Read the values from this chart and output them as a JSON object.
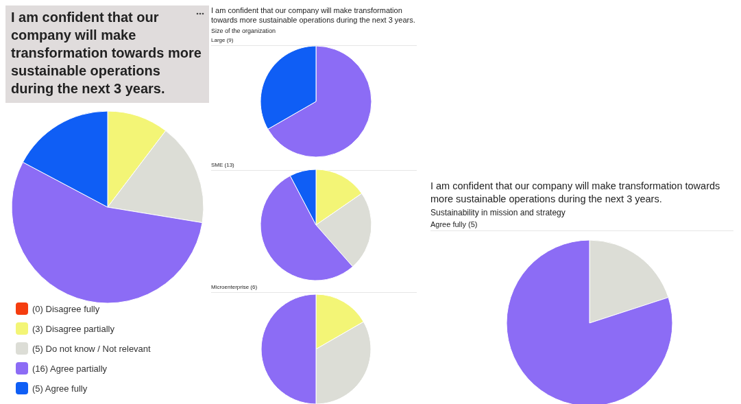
{
  "chart_data": [
    {
      "type": "pie",
      "title": "I am confident that our company will make transformation towards more sustainable operations during the next 3 years.",
      "categories": [
        "(0) Disagree fully",
        "(3) Disagree partially",
        "(5) Do not know / Not relevant",
        "(16) Agree partially",
        "(5) Agree fully"
      ],
      "values": [
        0,
        3,
        5,
        16,
        5
      ],
      "colors": [
        "#f53d0f",
        "#f3f576",
        "#dcddd6",
        "#8c6cf5",
        "#0f5ef5"
      ],
      "legend": "bottom left"
    },
    {
      "type": "pie",
      "title": "I am confident that our company will make transformation towards more sustainable operations during the next 3 years.",
      "subtitle": "Size of the organization",
      "annotations": [
        "Large (9)"
      ],
      "categories": [
        null,
        null
      ],
      "values": [
        66.7,
        33.3
      ],
      "colors": [
        "#8c6cf5",
        "#0f5ef5"
      ]
    },
    {
      "type": "pie",
      "annotations": [
        "SME (13)"
      ],
      "categories": [
        null,
        null,
        null,
        null
      ],
      "values": [
        15.4,
        23.1,
        53.8,
        7.7
      ],
      "colors": [
        "#f3f576",
        "#dcddd6",
        "#8c6cf5",
        "#0f5ef5"
      ]
    },
    {
      "type": "pie",
      "annotations": [
        "Microenterprise (6)"
      ],
      "categories": [
        null,
        null,
        null
      ],
      "values": [
        16.7,
        33.3,
        50
      ],
      "colors": [
        "#f3f576",
        "#dcddd6",
        "#8c6cf5"
      ]
    },
    {
      "type": "pie",
      "title": "I am confident that our company will make transformation towards more sustainable operations during the next 3 years.",
      "subtitle": "Sustainability in mission and strategy",
      "annotations": [
        "Agree fully (5)"
      ],
      "categories": [
        null,
        null
      ],
      "values": [
        20,
        80
      ],
      "colors": [
        "#dcddd6",
        "#8c6cf5"
      ]
    }
  ]
}
